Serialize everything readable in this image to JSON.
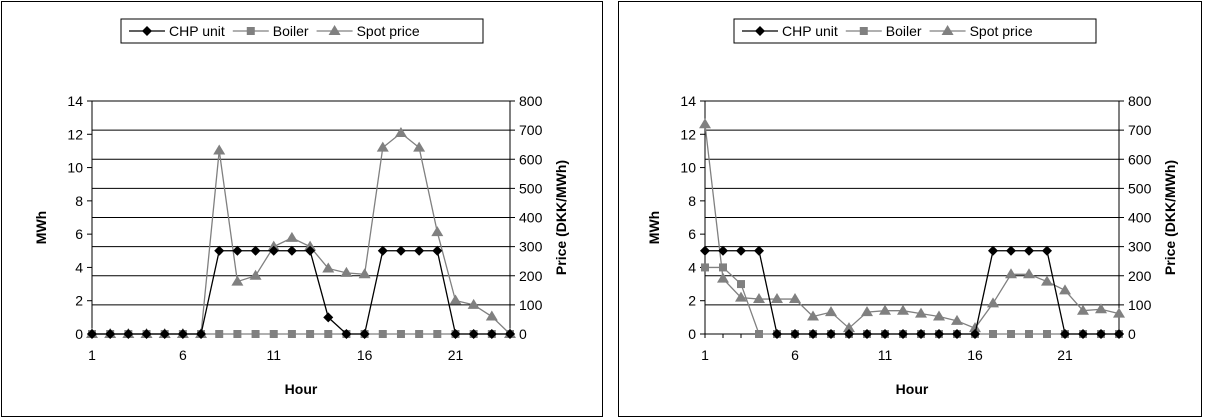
{
  "chart_data": [
    {
      "type": "line",
      "xlabel": "Hour",
      "ylabel": "MWh",
      "y2label": "Price (DKK/MWh)",
      "ylim": [
        0,
        14
      ],
      "y2lim": [
        0,
        800
      ],
      "xlim": [
        1,
        24
      ],
      "x_ticks": [
        "1",
        "6",
        "11",
        "16",
        "21"
      ],
      "y_ticks": [
        "0",
        "2",
        "4",
        "6",
        "8",
        "10",
        "12",
        "14"
      ],
      "y2_ticks": [
        "0",
        "100",
        "200",
        "300",
        "400",
        "500",
        "600",
        "700",
        "800"
      ],
      "grid": true,
      "legend_position": "top",
      "x": [
        1,
        2,
        3,
        4,
        5,
        6,
        7,
        8,
        9,
        10,
        11,
        12,
        13,
        14,
        15,
        16,
        17,
        18,
        19,
        20,
        21,
        22,
        23,
        24
      ],
      "series": [
        {
          "name": "CHP unit",
          "axis": "left",
          "marker": "diamond",
          "color": "#000000",
          "values": [
            0,
            0,
            0,
            0,
            0,
            0,
            0,
            5,
            5,
            5,
            5,
            5,
            5,
            1,
            0,
            0,
            5,
            5,
            5,
            5,
            0,
            0,
            0,
            0
          ]
        },
        {
          "name": "Boiler",
          "axis": "left",
          "marker": "square",
          "color": "#808080",
          "values": [
            0,
            0,
            0,
            0,
            0,
            0,
            0,
            0,
            0,
            0,
            0,
            0,
            0,
            0,
            0,
            0,
            0,
            0,
            0,
            0,
            0,
            0,
            0,
            0
          ]
        },
        {
          "name": "Spot price",
          "axis": "right",
          "marker": "triangle",
          "color": "#808080",
          "values": [
            0,
            0,
            0,
            0,
            0,
            0,
            0,
            630,
            180,
            200,
            300,
            330,
            300,
            225,
            210,
            205,
            640,
            690,
            640,
            350,
            115,
            100,
            60,
            0
          ]
        }
      ]
    },
    {
      "type": "line",
      "xlabel": "Hour",
      "ylabel": "MWh",
      "y2label": "Price (DKK/MWh)",
      "ylim": [
        0,
        14
      ],
      "y2lim": [
        0,
        800
      ],
      "xlim": [
        1,
        24
      ],
      "x_ticks": [
        "1",
        "6",
        "11",
        "16",
        "21"
      ],
      "y_ticks": [
        "0",
        "2",
        "4",
        "6",
        "8",
        "10",
        "12",
        "14"
      ],
      "y2_ticks": [
        "0",
        "100",
        "200",
        "300",
        "400",
        "500",
        "600",
        "700",
        "800"
      ],
      "grid": true,
      "legend_position": "top",
      "x": [
        1,
        2,
        3,
        4,
        5,
        6,
        7,
        8,
        9,
        10,
        11,
        12,
        13,
        14,
        15,
        16,
        17,
        18,
        19,
        20,
        21,
        22,
        23,
        24
      ],
      "series": [
        {
          "name": "CHP unit",
          "axis": "left",
          "marker": "diamond",
          "color": "#000000",
          "values": [
            5,
            5,
            5,
            5,
            0,
            0,
            0,
            0,
            0,
            0,
            0,
            0,
            0,
            0,
            0,
            0,
            5,
            5,
            5,
            5,
            0,
            0,
            0,
            0
          ]
        },
        {
          "name": "Boiler",
          "axis": "left",
          "marker": "square",
          "color": "#808080",
          "values": [
            4,
            4,
            3,
            0,
            0,
            0,
            0,
            0,
            0,
            0,
            0,
            0,
            0,
            0,
            0,
            0,
            0,
            0,
            0,
            0,
            0,
            0,
            0,
            0
          ]
        },
        {
          "name": "Spot price",
          "axis": "right",
          "marker": "triangle",
          "color": "#808080",
          "values": [
            720,
            190,
            125,
            120,
            120,
            120,
            60,
            75,
            20,
            75,
            80,
            80,
            70,
            60,
            45,
            20,
            105,
            205,
            205,
            180,
            150,
            80,
            85,
            70
          ]
        }
      ]
    }
  ]
}
